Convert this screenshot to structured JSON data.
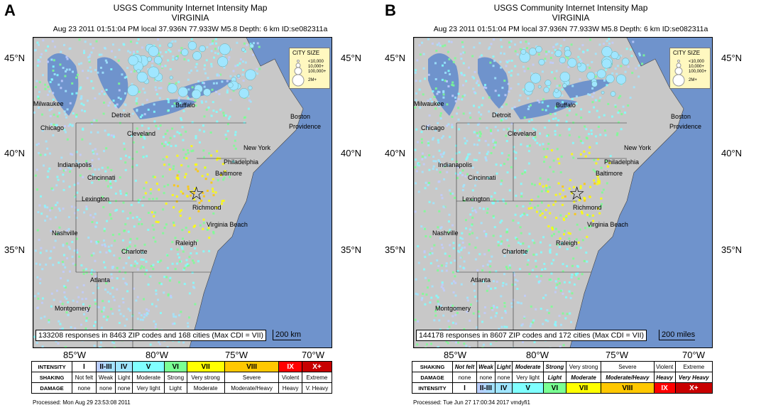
{
  "panels": [
    {
      "label": "A",
      "title1": "USGS Community Internet Intensity Map",
      "title2": "VIRGINIA",
      "subtitle": "Aug 23 2011 01:51:04 PM local 37.936N 77.933W M5.8 Depth: 6 km ID:se082311a",
      "responses": "133208 responses in 8463 ZIP codes and 168 cities (Max CDI = VII)",
      "scale": "200 km",
      "processed": "Processed: Mon Aug 29 23:53:08 2011"
    },
    {
      "label": "B",
      "title1": "USGS Community Internet Intensity Map",
      "title2": "VIRGINIA",
      "subtitle": "Aug 23 2011 01:51:04 PM local 37.936N 77.933W M5.8 Depth: 6 km ID:se082311a",
      "responses": "144178 responses in 8607 ZIP codes and 172 cities (Max CDI = VII)",
      "scale": "200 miles",
      "processed": "Processed: Tue Jun 27 17:00:34 2017 vmdyfi1"
    }
  ],
  "latitudes": [
    "45°N",
    "40°N",
    "35°N"
  ],
  "longitudes": [
    "85°W",
    "80°W",
    "75°W",
    "70°W"
  ],
  "city_size": {
    "title": "CITY SIZE",
    "entries": [
      "<10,000",
      "10,000+",
      "100,000+",
      "2M+"
    ]
  },
  "cities": [
    {
      "name": "Milwaukee"
    },
    {
      "name": "Detroit"
    },
    {
      "name": "Buffalo"
    },
    {
      "name": "Chicago"
    },
    {
      "name": "Cleveland"
    },
    {
      "name": "Boston"
    },
    {
      "name": "Providence"
    },
    {
      "name": "New York"
    },
    {
      "name": "Philadelphia"
    },
    {
      "name": "Indianapolis"
    },
    {
      "name": "Cincinnati"
    },
    {
      "name": "Baltimore"
    },
    {
      "name": "Lexington"
    },
    {
      "name": "Richmond"
    },
    {
      "name": "Virginia Beach"
    },
    {
      "name": "Nashville"
    },
    {
      "name": "Raleigh"
    },
    {
      "name": "Charlotte"
    },
    {
      "name": "Atlanta"
    },
    {
      "name": "Montgomery"
    }
  ],
  "legend_a": {
    "intensity_label": "INTENSITY",
    "shaking_label": "SHAKING",
    "damage_label": "DAMAGE",
    "intensity": [
      "I",
      "II-III",
      "IV",
      "V",
      "VI",
      "VII",
      "VIII",
      "IX",
      "X+"
    ],
    "shaking": [
      "Not felt",
      "Weak",
      "Light",
      "Moderate",
      "Strong",
      "Very strong",
      "Severe",
      "Violent",
      "Extreme"
    ],
    "damage": [
      "none",
      "none",
      "none",
      "Very light",
      "Light",
      "Moderate",
      "Moderate/Heavy",
      "Heavy",
      "V. Heavy"
    ]
  },
  "legend_b": {
    "intensity_label": "INTENSITY",
    "shaking_label": "SHAKING",
    "damage_label": "DAMAGE",
    "intensity": [
      "I",
      "II-III",
      "IV",
      "V",
      "VI",
      "VII",
      "VIII",
      "IX",
      "X+"
    ],
    "shaking": [
      "Not felt",
      "Weak",
      "Light",
      "Moderate",
      "Strong",
      "Very strong",
      "Severe",
      "Violent",
      "Extreme"
    ],
    "damage": [
      "none",
      "none",
      "none",
      "Very light",
      "Light",
      "Moderate",
      "Moderate/Heavy",
      "Heavy",
      "Very Heavy"
    ]
  },
  "intensity_colors": [
    "#ffffff",
    "#bfccff",
    "#a0e6ff",
    "#80ffff",
    "#7aff93",
    "#ffff00",
    "#ffc800",
    "#ff9100",
    "#ff0000",
    "#c80000"
  ]
}
